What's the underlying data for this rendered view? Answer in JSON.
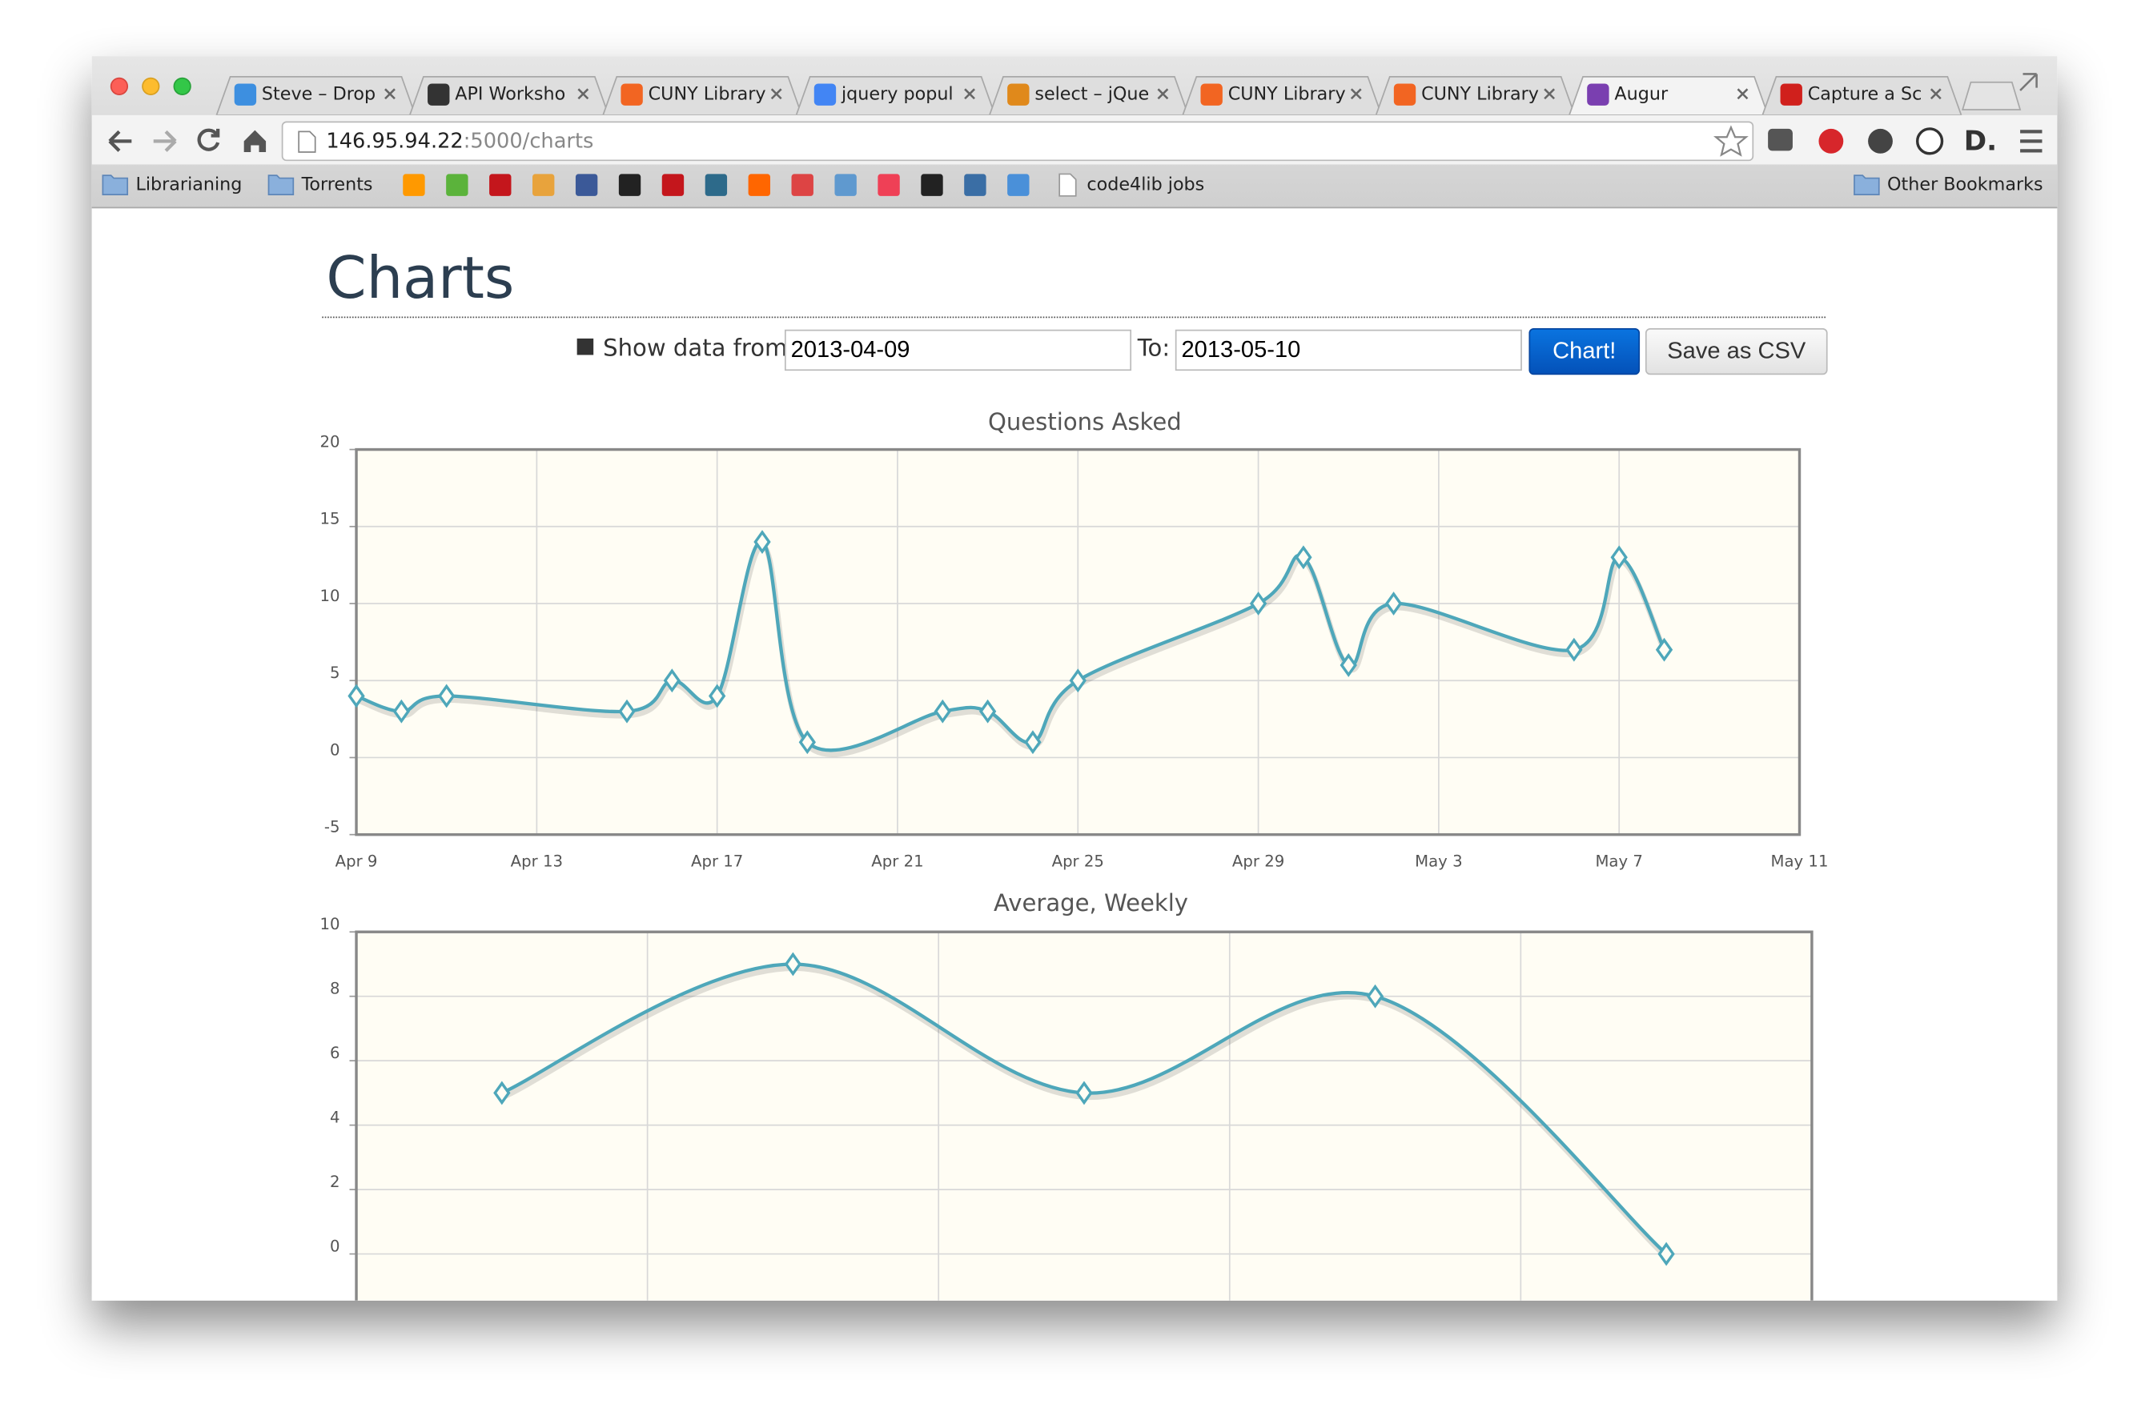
{
  "browser": {
    "tabs": [
      "Steve – Drop",
      "API Worksho",
      "CUNY Library",
      "jquery popul",
      "select – jQue",
      "CUNY Library",
      "CUNY Library",
      "Augur",
      "Capture a Sc"
    ],
    "url_host": "146.95.94.22",
    "url_path": ":5000/charts",
    "bookmarks": [
      "Librarianing",
      "Torrents"
    ],
    "bookmark_page": "code4lib jobs",
    "other_bookmarks": "Other Bookmarks"
  },
  "page": {
    "title": "Charts",
    "from_label": "Show data from:",
    "from_value": "2013-04-09",
    "to_label": "To:",
    "to_value": "2013-05-10",
    "chart_button": "Chart!",
    "csv_button": "Save as CSV"
  },
  "chart_data": [
    {
      "type": "line",
      "title": "Questions Asked",
      "x": [
        "Apr 9",
        "Apr 10",
        "Apr 11",
        "Apr 15",
        "Apr 16",
        "Apr 17",
        "Apr 18",
        "Apr 19",
        "Apr 22",
        "Apr 23",
        "Apr 24",
        "Apr 25",
        "Apr 29",
        "Apr 30",
        "May 1",
        "May 2",
        "May 6",
        "May 7",
        "May 8"
      ],
      "values": [
        4,
        3,
        4,
        3,
        5,
        4,
        14,
        1,
        3,
        3,
        1,
        5,
        10,
        13,
        6,
        10,
        7,
        13,
        7
      ],
      "color": "#4ea7ba",
      "xlim": [
        "Apr 9",
        "May 11"
      ],
      "xticks": [
        "Apr 9",
        "Apr 13",
        "Apr 17",
        "Apr 21",
        "Apr 25",
        "Apr 29",
        "May 3",
        "May 7",
        "May 11"
      ],
      "ylim": [
        -5,
        20
      ],
      "yticks": [
        -5,
        0,
        5,
        10,
        15,
        20
      ],
      "grid": true
    },
    {
      "type": "line",
      "title": "Average, Weekly",
      "categories": [
        null,
        null,
        null,
        null,
        null
      ],
      "values": [
        5,
        9,
        5,
        8,
        0
      ],
      "color": "#4ea7ba",
      "ylim": [
        -2,
        10
      ],
      "yticks": [
        0,
        2,
        4,
        6,
        8,
        10
      ],
      "grid": true
    }
  ]
}
